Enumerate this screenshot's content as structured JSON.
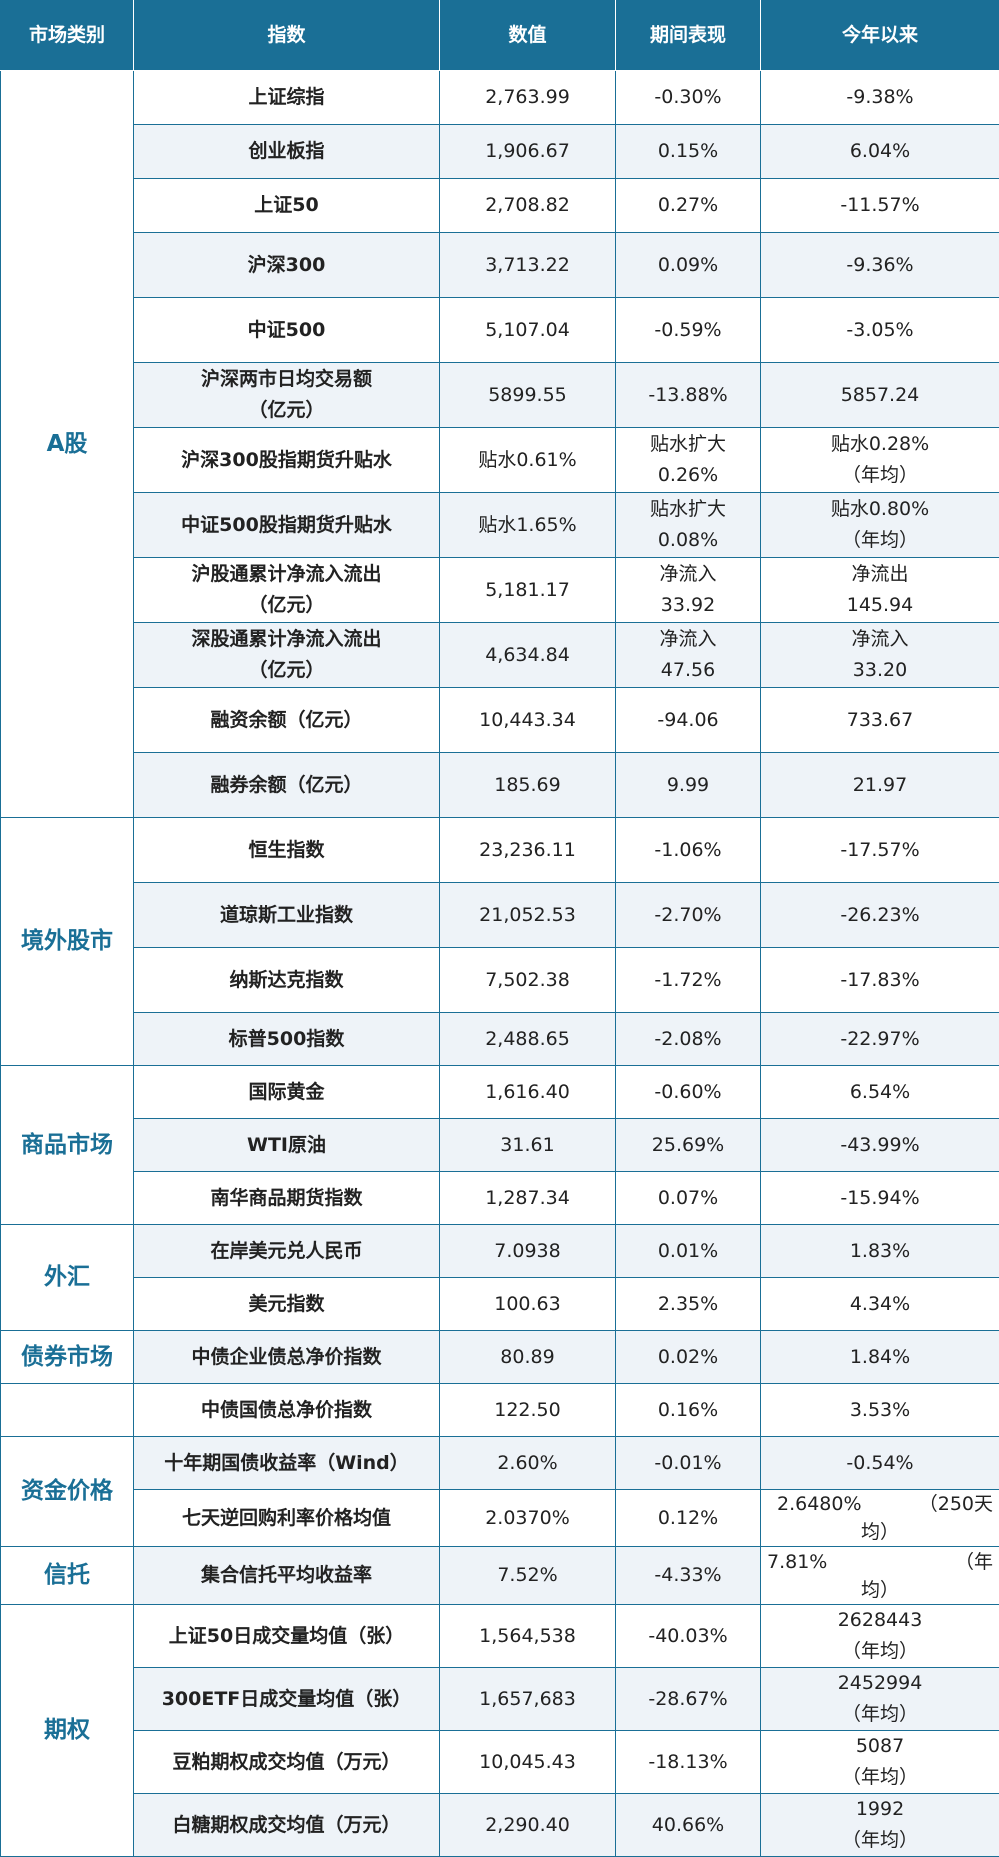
{
  "headers": [
    "市场类别",
    "指数",
    "数值",
    "期间表现",
    "今年以来"
  ],
  "categories": {
    "a_share": "A股",
    "overseas": "境外股市",
    "commodity": "商品市场",
    "fx": "外汇",
    "bond": "债券市场",
    "funding": "资金价格",
    "trust": "信托",
    "options": "期权"
  },
  "rows": [
    {
      "name": [
        "上证综指"
      ],
      "value": [
        "2,763.99"
      ],
      "period": [
        "-0.30%"
      ],
      "ytd": [
        "-9.38%"
      ]
    },
    {
      "name": [
        "创业板指"
      ],
      "value": [
        "1,906.67"
      ],
      "period": [
        "0.15%"
      ],
      "ytd": [
        "6.04%"
      ]
    },
    {
      "name": [
        "上证50"
      ],
      "value": [
        "2,708.82"
      ],
      "period": [
        "0.27%"
      ],
      "ytd": [
        "-11.57%"
      ]
    },
    {
      "name": [
        "沪深300"
      ],
      "value": [
        "3,713.22"
      ],
      "period": [
        "0.09%"
      ],
      "ytd": [
        "-9.36%"
      ]
    },
    {
      "name": [
        "中证500"
      ],
      "value": [
        "5,107.04"
      ],
      "period": [
        "-0.59%"
      ],
      "ytd": [
        "-3.05%"
      ]
    },
    {
      "name": [
        "沪深两市日均交易额",
        "（亿元）"
      ],
      "value": [
        "5899.55"
      ],
      "period": [
        "-13.88%"
      ],
      "ytd": [
        "5857.24"
      ]
    },
    {
      "name": [
        "沪深300股指期货升贴水"
      ],
      "value": [
        "贴水0.61%"
      ],
      "period": [
        "贴水扩大",
        "0.26%"
      ],
      "ytd": [
        "贴水0.28%",
        "（年均）"
      ]
    },
    {
      "name": [
        "中证500股指期货升贴水"
      ],
      "value": [
        "贴水1.65%"
      ],
      "period": [
        "贴水扩大",
        "0.08%"
      ],
      "ytd": [
        "贴水0.80%",
        "（年均）"
      ]
    },
    {
      "name": [
        "沪股通累计净流入流出",
        "（亿元）"
      ],
      "value": [
        "5,181.17"
      ],
      "period": [
        "净流入",
        "33.92"
      ],
      "ytd": [
        "净流出",
        "145.94"
      ]
    },
    {
      "name": [
        "深股通累计净流入流出",
        "（亿元）"
      ],
      "value": [
        "4,634.84"
      ],
      "period": [
        "净流入",
        "47.56"
      ],
      "ytd": [
        "净流入",
        "33.20"
      ]
    },
    {
      "name": [
        "融资余额（亿元）"
      ],
      "value": [
        "10,443.34"
      ],
      "period": [
        "-94.06"
      ],
      "ytd": [
        "733.67"
      ]
    },
    {
      "name": [
        "融券余额（亿元）"
      ],
      "value": [
        "185.69"
      ],
      "period": [
        "9.99"
      ],
      "ytd": [
        "21.97"
      ]
    },
    {
      "name": [
        "恒生指数"
      ],
      "value": [
        "23,236.11"
      ],
      "period": [
        "-1.06%"
      ],
      "ytd": [
        "-17.57%"
      ]
    },
    {
      "name": [
        "道琼斯工业指数"
      ],
      "value": [
        "21,052.53"
      ],
      "period": [
        "-2.70%"
      ],
      "ytd": [
        "-26.23%"
      ]
    },
    {
      "name": [
        "纳斯达克指数"
      ],
      "value": [
        "7,502.38"
      ],
      "period": [
        "-1.72%"
      ],
      "ytd": [
        "-17.83%"
      ]
    },
    {
      "name": [
        "标普500指数"
      ],
      "value": [
        "2,488.65"
      ],
      "period": [
        "-2.08%"
      ],
      "ytd": [
        "-22.97%"
      ]
    },
    {
      "name": [
        "国际黄金"
      ],
      "value": [
        "1,616.40"
      ],
      "period": [
        "-0.60%"
      ],
      "ytd": [
        "6.54%"
      ]
    },
    {
      "name": [
        "WTI原油"
      ],
      "value": [
        "31.61"
      ],
      "period": [
        "25.69%"
      ],
      "ytd": [
        "-43.99%"
      ]
    },
    {
      "name": [
        "南华商品期货指数"
      ],
      "value": [
        "1,287.34"
      ],
      "period": [
        "0.07%"
      ],
      "ytd": [
        "-15.94%"
      ]
    },
    {
      "name": [
        "在岸美元兑人民币"
      ],
      "value": [
        "7.0938"
      ],
      "period": [
        "0.01%"
      ],
      "ytd": [
        "1.83%"
      ]
    },
    {
      "name": [
        "美元指数"
      ],
      "value": [
        "100.63"
      ],
      "period": [
        "2.35%"
      ],
      "ytd": [
        "4.34%"
      ]
    },
    {
      "name": [
        "中债企业债总净价指数"
      ],
      "value": [
        "80.89"
      ],
      "period": [
        "0.02%"
      ],
      "ytd": [
        "1.84%"
      ]
    },
    {
      "name": [
        "中债国债总净价指数"
      ],
      "value": [
        "122.50"
      ],
      "period": [
        "0.16%"
      ],
      "ytd": [
        "3.53%"
      ]
    },
    {
      "name": [
        "十年期国债收益率（Wind）"
      ],
      "value": [
        "2.60%"
      ],
      "period": [
        "-0.01%"
      ],
      "ytd": [
        "-0.54%"
      ]
    },
    {
      "name": [
        "七天逆回购利率价格均值"
      ],
      "value": [
        "2.0370%"
      ],
      "period": [
        "0.12%"
      ],
      "ytd": [
        "2.6480%",
        "（250天",
        "均）"
      ]
    },
    {
      "name": [
        "集合信托平均收益率"
      ],
      "value": [
        "7.52%"
      ],
      "period": [
        "-4.33%"
      ],
      "ytd": [
        "7.81%",
        "（年",
        "均）"
      ]
    },
    {
      "name": [
        "上证50日成交量均值（张）"
      ],
      "value": [
        "1,564,538"
      ],
      "period": [
        "-40.03%"
      ],
      "ytd": [
        "2628443",
        "（年均）"
      ]
    },
    {
      "name": [
        "300ETF日成交量均值（张）"
      ],
      "value": [
        "1,657,683"
      ],
      "period": [
        "-28.67%"
      ],
      "ytd": [
        "2452994",
        "（年均）"
      ]
    },
    {
      "name": [
        "豆粕期权成交均值（万元）"
      ],
      "value": [
        "10,045.43"
      ],
      "period": [
        "-18.13%"
      ],
      "ytd": [
        "5087",
        "（年均）"
      ]
    },
    {
      "name": [
        "白糖期权成交均值（万元）"
      ],
      "value": [
        "2,290.40"
      ],
      "period": [
        "40.66%"
      ],
      "ytd": [
        "1992",
        "（年均）"
      ]
    }
  ]
}
